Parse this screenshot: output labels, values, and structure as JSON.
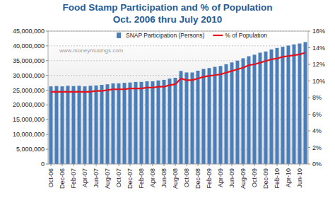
{
  "chart_data": {
    "type": "bar",
    "title": "Food Stamp Participation and % of Population",
    "subtitle": "Oct. 2006 thru July 2010",
    "annotations": [
      "www.moneymusings.com"
    ],
    "categories": [
      "Oct-06",
      null,
      "Dec-06",
      null,
      "Feb-07",
      null,
      "Apr-07",
      null,
      "Jun-07",
      null,
      "Aug-07",
      null,
      "Oct-07",
      null,
      "Dec-07",
      null,
      "Feb-08",
      null,
      "Apr-08",
      null,
      "Jun-08",
      null,
      "Aug-08",
      null,
      "Oct-08",
      null,
      "Dec-08",
      null,
      "Feb-09",
      null,
      "Apr-09",
      null,
      "Jun-09",
      null,
      "Aug-09",
      null,
      "Oct-09",
      null,
      "Dec-09",
      null,
      "Feb-10",
      null,
      "Apr-10",
      null,
      "Jun-10",
      null
    ],
    "series": [
      {
        "name": "SNAP Participation (Persons)",
        "type": "bar",
        "color": "#4a7ebb",
        "values": [
          26300000,
          26400000,
          26300000,
          26500000,
          26400000,
          26500000,
          26300000,
          26500000,
          26600000,
          26800000,
          27000000,
          27300000,
          27300000,
          27500000,
          27600000,
          27800000,
          27800000,
          28000000,
          28000000,
          28300000,
          28500000,
          28900000,
          29200000,
          31500000,
          31000000,
          31000000,
          31600000,
          32200000,
          32500000,
          32900000,
          33200000,
          33800000,
          34400000,
          35000000,
          35800000,
          36500000,
          37000000,
          37700000,
          38100000,
          38800000,
          39300000,
          39700000,
          40100000,
          40500000,
          40800000,
          41300000
        ]
      },
      {
        "name": "% of Population",
        "type": "line",
        "color": "#e5131b",
        "axis": "y2",
        "values": [
          8.7,
          8.7,
          8.7,
          8.7,
          8.7,
          8.7,
          8.7,
          8.7,
          8.8,
          8.8,
          8.9,
          9.0,
          9.0,
          9.0,
          9.1,
          9.1,
          9.1,
          9.2,
          9.2,
          9.3,
          9.3,
          9.5,
          9.6,
          10.3,
          10.1,
          10.1,
          10.3,
          10.5,
          10.6,
          10.7,
          10.8,
          11.0,
          11.2,
          11.4,
          11.6,
          11.9,
          12.0,
          12.2,
          12.4,
          12.6,
          12.7,
          12.9,
          13.0,
          13.1,
          13.2,
          13.4
        ]
      }
    ],
    "ylim": [
      0,
      45000000
    ],
    "yticks": [
      0,
      {
        "value": 5000000,
        "label": "5,000,000"
      },
      {
        "value": 10000000,
        "label": "10,000,000"
      },
      {
        "value": 15000000,
        "label": "15,000,000"
      },
      {
        "value": 20000000,
        "label": "20,000,000"
      },
      {
        "value": 25000000,
        "label": "25,000,000"
      },
      {
        "value": 30000000,
        "label": "30,000,000"
      },
      {
        "value": 35000000,
        "label": "35,000,000"
      },
      {
        "value": 40000000,
        "label": "40,000,000"
      },
      {
        "value": 45000000,
        "label": "45,000,000"
      }
    ],
    "y2lim": [
      0,
      16
    ],
    "y2ticks": [
      {
        "value": 0,
        "label": "0%"
      },
      {
        "value": 2,
        "label": "2%"
      },
      {
        "value": 4,
        "label": "4%"
      },
      {
        "value": 6,
        "label": "6%"
      },
      {
        "value": 8,
        "label": "8%"
      },
      {
        "value": 10,
        "label": "10%"
      },
      {
        "value": 12,
        "label": "12%"
      },
      {
        "value": 14,
        "label": "14%"
      },
      {
        "value": 16,
        "label": "16%"
      }
    ],
    "grid": true,
    "legend": "top"
  }
}
